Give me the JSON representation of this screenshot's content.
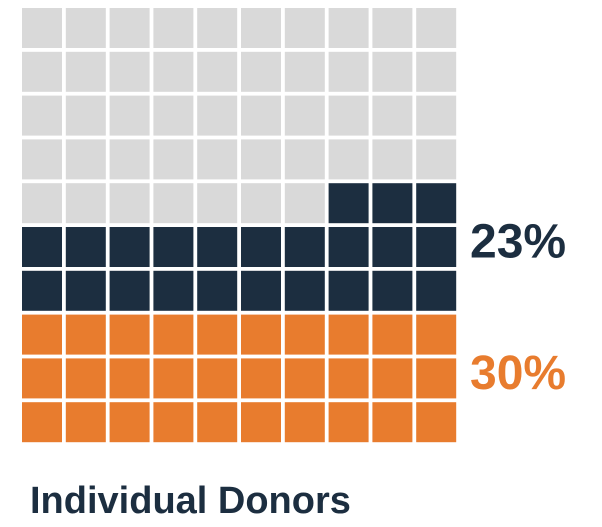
{
  "chart_data": {
    "type": "waffle",
    "title": "Individual Donors",
    "values": [
      30,
      23
    ],
    "value_labels": [
      "30%",
      "23%"
    ],
    "colors": [
      "#e87c2e",
      "#1c2e40"
    ],
    "empty_color": "#d9d9d9",
    "rows": 10,
    "columns": 10
  }
}
